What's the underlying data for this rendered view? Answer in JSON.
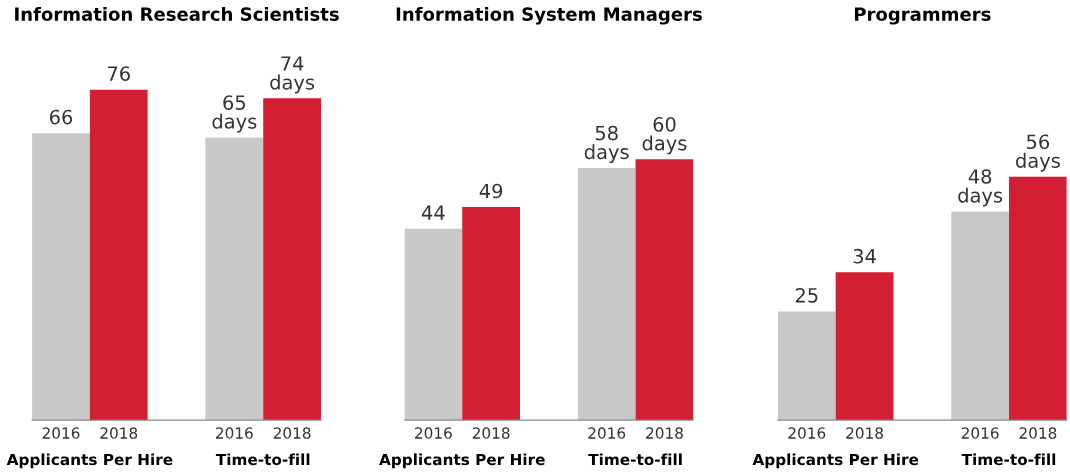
{
  "chart_data": [
    {
      "type": "bar",
      "title": "Information Research Scientists",
      "categories": [
        "2016",
        "2018",
        null,
        "2016",
        "2018"
      ],
      "values": [
        66,
        76,
        null,
        65,
        74
      ],
      "colors": [
        "#c8c8c8",
        "#d31f33",
        null,
        "#c8c8c8",
        "#d31f33"
      ],
      "value_labels": [
        "66",
        "76",
        null,
        "65 days",
        "74 days"
      ],
      "annotations": [
        "Applicants Per Hire",
        "Time-to-fill"
      ],
      "tick_labels": "x",
      "grid": false,
      "legend": false
    },
    {
      "type": "bar",
      "title": "Information System Managers",
      "categories": [
        "2016",
        "2018",
        null,
        "2016",
        "2018"
      ],
      "values": [
        44,
        49,
        null,
        58,
        60
      ],
      "colors": [
        "#c8c8c8",
        "#d31f33",
        null,
        "#c8c8c8",
        "#d31f33"
      ],
      "value_labels": [
        "44",
        "49",
        null,
        "58 days",
        "60 days"
      ],
      "annotations": [
        "Applicants Per Hire",
        "Time-to-fill"
      ],
      "tick_labels": "x",
      "grid": false,
      "legend": false
    },
    {
      "type": "bar",
      "title": "Programmers",
      "categories": [
        "2016",
        "2018",
        null,
        "2016",
        "2018"
      ],
      "values": [
        25,
        34,
        null,
        48,
        56
      ],
      "colors": [
        "#c8c8c8",
        "#d31f33",
        null,
        "#c8c8c8",
        "#d31f33"
      ],
      "value_labels": [
        "25",
        "34",
        null,
        "48 days",
        "56 days"
      ],
      "annotations": [
        "Applicants Per Hire",
        "Time-to-fill"
      ],
      "tick_labels": "x",
      "grid": false,
      "legend": false
    }
  ]
}
